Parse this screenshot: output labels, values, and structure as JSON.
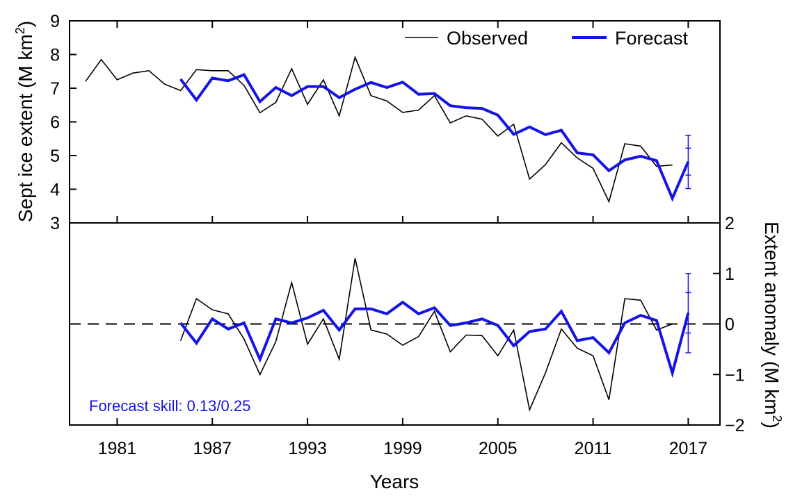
{
  "chart_data": [
    {
      "type": "line",
      "panel": "top",
      "ylabel_text": "Sept ice extent (M km",
      "ylabel_sup": "2",
      "ylabel_close": ")",
      "xlim": [
        1978,
        2019
      ],
      "ylim": [
        3,
        9
      ],
      "yticks": [
        "3",
        "4",
        "5",
        "6",
        "7",
        "8",
        "9"
      ],
      "legend": {
        "observed": "Observed",
        "forecast": "Forecast",
        "placement": "top-right"
      },
      "colors": {
        "observed": "#000000",
        "forecast": "#1414e6"
      },
      "series": [
        {
          "name": "Observed",
          "x": [
            1979,
            1980,
            1981,
            1982,
            1983,
            1984,
            1985,
            1986,
            1987,
            1988,
            1989,
            1990,
            1991,
            1992,
            1993,
            1994,
            1995,
            1996,
            1997,
            1998,
            1999,
            2000,
            2001,
            2002,
            2003,
            2004,
            2005,
            2006,
            2007,
            2008,
            2009,
            2010,
            2011,
            2012,
            2013,
            2014,
            2015,
            2016
          ],
          "values": [
            7.2,
            7.85,
            7.25,
            7.45,
            7.52,
            7.12,
            6.93,
            7.55,
            7.52,
            7.52,
            7.08,
            6.27,
            6.58,
            7.58,
            6.52,
            7.25,
            6.18,
            7.92,
            6.78,
            6.62,
            6.28,
            6.35,
            6.78,
            5.97,
            6.18,
            6.08,
            5.58,
            5.93,
            4.3,
            4.73,
            5.38,
            4.93,
            4.62,
            3.63,
            5.35,
            5.28,
            4.68,
            4.72
          ]
        },
        {
          "name": "Forecast",
          "x": [
            1985,
            1986,
            1987,
            1988,
            1989,
            1990,
            1991,
            1992,
            1993,
            1994,
            1995,
            1996,
            1997,
            1998,
            1999,
            2000,
            2001,
            2002,
            2003,
            2004,
            2005,
            2006,
            2007,
            2008,
            2009,
            2010,
            2011,
            2012,
            2013,
            2014,
            2015,
            2016,
            2017
          ],
          "values": [
            7.27,
            6.65,
            7.3,
            7.22,
            7.4,
            6.6,
            7.02,
            6.78,
            7.05,
            7.05,
            6.72,
            6.97,
            7.17,
            7.02,
            7.18,
            6.82,
            6.84,
            6.48,
            6.42,
            6.4,
            6.2,
            5.63,
            5.85,
            5.62,
            5.75,
            5.08,
            5.02,
            4.55,
            4.87,
            4.98,
            4.85,
            3.73,
            4.82
          ]
        }
      ],
      "error_bar": {
        "x": 2017,
        "center": 4.82,
        "inner": [
          4.42,
          5.22
        ],
        "outer": [
          4.02,
          5.6
        ]
      }
    },
    {
      "type": "line",
      "panel": "bottom",
      "ylabel_text": "Extent anomaly (M km",
      "ylabel_sup": "2",
      "ylabel_close": ")",
      "xlabel": "Years",
      "xlim": [
        1978,
        2019
      ],
      "ylim": [
        -2,
        2
      ],
      "yticks": [
        "−2",
        "−1",
        "0",
        "1",
        "2"
      ],
      "xticks": [
        "1981",
        "1987",
        "1993",
        "1999",
        "2005",
        "2011",
        "2017"
      ],
      "zero_line": "dashed",
      "annotation": "Forecast skill: 0.13/0.25",
      "series": [
        {
          "name": "Observed",
          "x": [
            1985,
            1986,
            1987,
            1988,
            1989,
            1990,
            1991,
            1992,
            1993,
            1994,
            1995,
            1996,
            1997,
            1998,
            1999,
            2000,
            2001,
            2002,
            2003,
            2004,
            2005,
            2006,
            2007,
            2008,
            2009,
            2010,
            2011,
            2012,
            2013,
            2014,
            2015,
            2016
          ],
          "values": [
            -0.33,
            0.5,
            0.28,
            0.2,
            -0.3,
            -1.0,
            -0.35,
            0.82,
            -0.4,
            0.1,
            -0.7,
            1.3,
            -0.12,
            -0.2,
            -0.42,
            -0.25,
            0.25,
            -0.55,
            -0.22,
            -0.23,
            -0.63,
            -0.12,
            -1.7,
            -0.97,
            -0.1,
            -0.48,
            -0.63,
            -1.5,
            0.5,
            0.47,
            -0.12,
            0.0
          ]
        },
        {
          "name": "Forecast",
          "x": [
            1985,
            1986,
            1987,
            1988,
            1989,
            1990,
            1991,
            1992,
            1993,
            1994,
            1995,
            1996,
            1997,
            1998,
            1999,
            2000,
            2001,
            2002,
            2003,
            2004,
            2005,
            2006,
            2007,
            2008,
            2009,
            2010,
            2011,
            2012,
            2013,
            2014,
            2015,
            2016,
            2017
          ],
          "values": [
            0.02,
            -0.38,
            0.1,
            -0.1,
            0.02,
            -0.7,
            0.1,
            0.02,
            0.12,
            0.27,
            -0.12,
            0.3,
            0.3,
            0.2,
            0.43,
            0.2,
            0.32,
            -0.03,
            0.02,
            0.1,
            -0.03,
            -0.43,
            -0.15,
            -0.1,
            0.25,
            -0.33,
            -0.27,
            -0.57,
            0.02,
            0.17,
            0.07,
            -0.97,
            0.22
          ]
        }
      ],
      "error_bar": {
        "x": 2017,
        "center": 0.22,
        "inner": [
          -0.18,
          0.62
        ],
        "outer": [
          -0.57,
          1.0
        ]
      }
    }
  ]
}
